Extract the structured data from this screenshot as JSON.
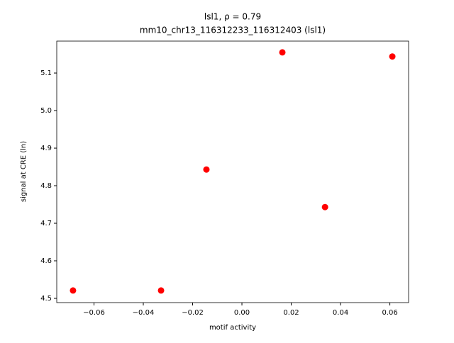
{
  "chart_data": {
    "type": "scatter",
    "title": "lsl1, ρ = 0.79",
    "subtitle": "mm10_chr13_116312233_116312403 (lsl1)",
    "x_label": "motif activity",
    "y_label": "signal at CRE (ln)",
    "color": "#ff0000",
    "x": [
      -0.0685,
      -0.0328,
      -0.0144,
      0.0164,
      0.0337,
      0.061
    ],
    "values": [
      4.521,
      4.521,
      4.843,
      5.155,
      4.743,
      5.144
    ],
    "xlim": [
      -0.0751,
      0.0676
    ],
    "ylim": [
      4.4887,
      5.185
    ],
    "xticks": [
      {
        "value": -0.06,
        "label": "−0.06"
      },
      {
        "value": -0.04,
        "label": "−0.04"
      },
      {
        "value": -0.02,
        "label": "−0.02"
      },
      {
        "value": 0,
        "label": "0.00"
      },
      {
        "value": 0.02,
        "label": "0.02"
      },
      {
        "value": 0.04,
        "label": "0.04"
      },
      {
        "value": 0.06,
        "label": "0.06"
      }
    ],
    "yticks": [
      4.5,
      4.6,
      4.7,
      4.8,
      4.9,
      {
        "value": 5.0,
        "label": "5.0"
      },
      5.1
    ]
  }
}
